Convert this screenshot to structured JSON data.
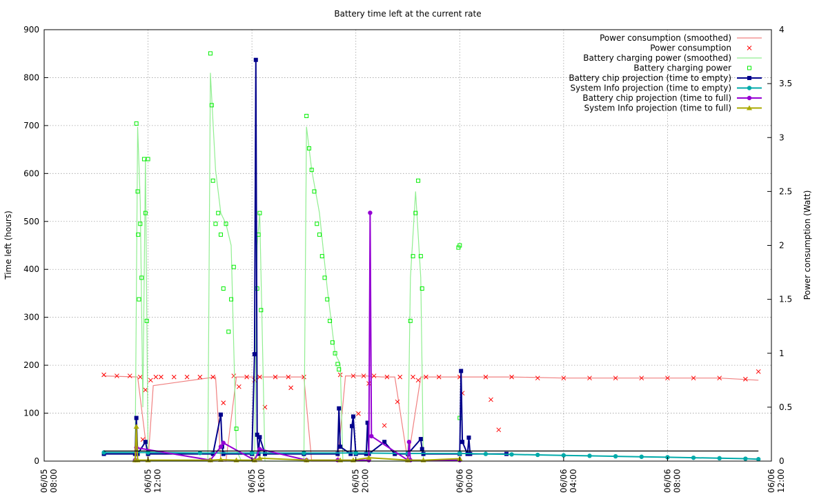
{
  "chart_data": {
    "type": "line",
    "title": "Battery time left at the current rate",
    "ylabel": "Time left (hours)",
    "y2label": "Power consumption (Watt)",
    "xlabel": "",
    "x_range_hours": [
      8,
      36
    ],
    "ylim": [
      0,
      900
    ],
    "y2lim": [
      0,
      4
    ],
    "grid": true,
    "legend_position": "top-right",
    "y_ticks": [
      0,
      100,
      200,
      300,
      400,
      500,
      600,
      700,
      800,
      900
    ],
    "y2_ticks": [
      "0",
      "0.5",
      "1",
      "1.5",
      "2",
      "2.5",
      "3",
      "3.5",
      "4"
    ],
    "y2_tick_values": [
      0,
      0.5,
      1,
      1.5,
      2,
      2.5,
      3,
      3.5,
      4
    ],
    "x_ticks": [
      {
        "hour": 8,
        "date": "06/05",
        "time": "08:00"
      },
      {
        "hour": 12,
        "date": "06/05",
        "time": "12:00"
      },
      {
        "hour": 16,
        "date": "06/05",
        "time": "16:00"
      },
      {
        "hour": 20,
        "date": "06/05",
        "time": "20:00"
      },
      {
        "hour": 24,
        "date": "06/06",
        "time": "00:00"
      },
      {
        "hour": 28,
        "date": "06/06",
        "time": "04:00"
      },
      {
        "hour": 32,
        "date": "06/06",
        "time": "08:00"
      },
      {
        "hour": 36,
        "date": "06/06",
        "time": "12:00"
      }
    ],
    "series": [
      {
        "name": "Power consumption (smoothed)",
        "axis": "y2",
        "kind": "line",
        "color": "#f08080",
        "x": [
          10.3,
          11.6,
          11.9,
          12.0,
          12.2,
          14.6,
          14.8,
          15.0,
          15.4,
          15.8,
          17.0,
          18.0,
          18.3,
          18.6,
          19.3,
          19.6,
          20.0,
          20.4,
          21.0,
          21.5,
          22.0,
          22.5,
          23.0,
          24.0,
          26.0,
          28.0,
          30.0,
          32.0,
          34.0,
          35.5
        ],
        "y": [
          0.79,
          0.78,
          0.2,
          0.0,
          0.7,
          0.78,
          0.0,
          0.0,
          0.78,
          0.78,
          0.78,
          0.78,
          0.0,
          0.0,
          0.0,
          0.79,
          0.79,
          0.79,
          0.78,
          0.78,
          0.0,
          0.78,
          0.78,
          0.78,
          0.78,
          0.77,
          0.77,
          0.77,
          0.77,
          0.75
        ]
      },
      {
        "name": "Power consumption",
        "axis": "y2",
        "kind": "marker",
        "marker": "x",
        "color": "#ff0000",
        "x": [
          10.3,
          10.8,
          11.3,
          11.7,
          11.9,
          12.1,
          12.3,
          12.5,
          13.0,
          13.5,
          14.0,
          14.5,
          15.3,
          15.8,
          16.3,
          16.9,
          17.4,
          18.0,
          19.4,
          19.9,
          20.3,
          20.7,
          21.2,
          21.7,
          22.2,
          22.7,
          23.2,
          24.0,
          25.0,
          26.0,
          27.0,
          28.0,
          29.0,
          30.0,
          31.0,
          32.0,
          33.0,
          34.0,
          35.0,
          35.5,
          11.8,
          12.0,
          14.9,
          15.5,
          16.1,
          16.5,
          17.5,
          20.1,
          20.5,
          21.1,
          21.6,
          22.4,
          25.2,
          25.5,
          24.1
        ],
        "y": [
          0.8,
          0.79,
          0.79,
          0.78,
          0.66,
          0.75,
          0.78,
          0.78,
          0.78,
          0.78,
          0.78,
          0.78,
          0.79,
          0.78,
          0.78,
          0.78,
          0.78,
          0.78,
          0.8,
          0.79,
          0.79,
          0.79,
          0.78,
          0.78,
          0.78,
          0.78,
          0.78,
          0.78,
          0.78,
          0.78,
          0.77,
          0.77,
          0.77,
          0.77,
          0.77,
          0.77,
          0.77,
          0.77,
          0.76,
          0.83,
          0.2,
          0.09,
          0.54,
          0.69,
          0.75,
          0.5,
          0.68,
          0.44,
          0.72,
          0.33,
          0.55,
          0.75,
          0.57,
          0.29,
          0.63
        ]
      },
      {
        "name": "Battery charging power (smoothed)",
        "axis": "y2",
        "kind": "line",
        "color": "#90ee90",
        "x": [
          11.5,
          11.6,
          11.7,
          11.8,
          11.9,
          12.0,
          14.3,
          14.4,
          14.6,
          14.8,
          15.0,
          15.2,
          15.4,
          15.6,
          16.1,
          16.2,
          16.3,
          16.5,
          18.0,
          18.1,
          18.3,
          18.6,
          18.9,
          19.2,
          19.4,
          19.5,
          22.0,
          22.1,
          22.3,
          22.5,
          22.6
        ],
        "y": [
          0.0,
          3.1,
          2.4,
          0.5,
          2.8,
          0.0,
          0.0,
          3.6,
          2.7,
          2.3,
          2.2,
          2.0,
          0.1,
          0.0,
          0.0,
          2.0,
          2.3,
          0.0,
          0.0,
          3.1,
          2.7,
          2.3,
          1.6,
          1.0,
          0.9,
          0.0,
          0.0,
          1.7,
          2.5,
          1.7,
          0.0
        ]
      },
      {
        "name": "Battery charging power",
        "axis": "y2",
        "kind": "marker",
        "marker": "square-open",
        "color": "#00ee00",
        "x": [
          11.55,
          11.6,
          11.62,
          11.65,
          11.7,
          11.75,
          11.85,
          11.9,
          11.95,
          12.0,
          14.4,
          14.45,
          14.5,
          14.6,
          14.7,
          14.8,
          14.9,
          15.0,
          15.1,
          15.2,
          15.3,
          15.4,
          16.2,
          16.25,
          16.3,
          16.35,
          18.1,
          18.2,
          18.3,
          18.4,
          18.5,
          18.6,
          18.7,
          18.8,
          18.9,
          19.0,
          19.1,
          19.2,
          19.3,
          19.35,
          22.1,
          22.2,
          22.3,
          22.4,
          22.5,
          22.55,
          24.0,
          23.95,
          24.0
        ],
        "y": [
          3.13,
          2.5,
          2.1,
          1.5,
          2.2,
          1.7,
          2.8,
          2.3,
          1.3,
          2.8,
          3.78,
          3.3,
          2.6,
          2.2,
          2.3,
          2.1,
          1.6,
          2.2,
          1.2,
          1.5,
          1.8,
          0.3,
          1.6,
          2.1,
          2.3,
          1.4,
          3.2,
          2.9,
          2.7,
          2.5,
          2.2,
          2.1,
          1.9,
          1.7,
          1.5,
          1.3,
          1.1,
          1.0,
          0.9,
          0.85,
          1.3,
          1.9,
          2.3,
          2.6,
          1.9,
          1.6,
          2.0,
          1.98,
          0.4
        ]
      },
      {
        "name": "Battery chip projection (time to empty)",
        "axis": "y",
        "kind": "line-marker",
        "marker": "square",
        "color": "#00008b",
        "x": [
          10.3,
          11.5,
          11.55,
          11.6,
          11.9,
          12.0,
          14.5,
          14.8,
          14.85,
          14.9,
          16.0,
          16.1,
          16.15,
          16.2,
          16.25,
          16.3,
          16.5,
          18.0,
          19.3,
          19.35,
          19.4,
          19.8,
          19.85,
          19.9,
          20.0,
          20.4,
          20.45,
          20.5,
          21.1,
          21.5,
          22.0,
          22.5,
          22.55,
          22.6,
          24.0,
          24.05,
          24.1,
          24.3,
          24.35,
          24.4,
          25.8
        ],
        "y": [
          15,
          15,
          90,
          15,
          40,
          15,
          15,
          97,
          30,
          15,
          15,
          223,
          837,
          55,
          15,
          50,
          15,
          15,
          15,
          110,
          30,
          15,
          73,
          93,
          15,
          15,
          80,
          15,
          40,
          15,
          15,
          46,
          25,
          15,
          15,
          188,
          40,
          15,
          49,
          15,
          15
        ]
      },
      {
        "name": "System Info projection (time to empty)",
        "axis": "y",
        "kind": "line-marker",
        "marker": "circle",
        "color": "#00aaaa",
        "x": [
          10.3,
          12.0,
          14.0,
          16.0,
          18.0,
          20.0,
          22.0,
          24.0,
          25.0,
          26.0,
          27.0,
          28.0,
          29.0,
          30.0,
          31.0,
          32.0,
          33.0,
          34.0,
          35.0,
          35.5
        ],
        "y": [
          18,
          18,
          17,
          17,
          17,
          17,
          16,
          16,
          15,
          14,
          13,
          12,
          11,
          10,
          9,
          8,
          7,
          6,
          5,
          4
        ]
      },
      {
        "name": "Battery chip projection (time to full)",
        "axis": "y",
        "kind": "line-marker",
        "marker": "circle",
        "color": "#9400d3",
        "x": [
          11.5,
          11.55,
          14.4,
          14.8,
          14.9,
          16.1,
          16.3,
          18.1,
          19.3,
          20.5,
          20.55,
          20.6,
          22.0,
          22.05,
          22.1,
          24.0
        ],
        "y": [
          2,
          28,
          2,
          30,
          38,
          2,
          25,
          2,
          2,
          2,
          518,
          52,
          2,
          40,
          2,
          2
        ]
      },
      {
        "name": "System Info projection (time to full)",
        "axis": "y",
        "kind": "line-marker",
        "marker": "triangle",
        "color": "#aaaa00",
        "x": [
          11.5,
          11.55,
          11.6,
          12.0,
          14.4,
          14.8,
          15.4,
          16.1,
          16.3,
          18.1,
          19.4,
          19.9,
          20.5,
          22.0,
          22.6,
          24.0
        ],
        "y": [
          2,
          72,
          2,
          2,
          2,
          3,
          2,
          2,
          6,
          2,
          2,
          2,
          7,
          2,
          2,
          5
        ]
      },
      {
        "name": "",
        "axis": "y",
        "kind": "line",
        "color": "#000000",
        "x": [
          10.3,
          35.5
        ],
        "y": [
          21,
          21
        ]
      }
    ]
  }
}
